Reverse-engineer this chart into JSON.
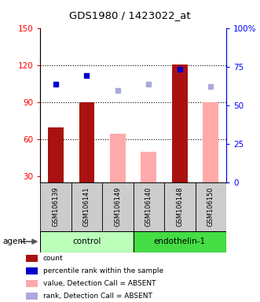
{
  "title": "GDS1980 / 1423022_at",
  "samples": [
    "GSM106139",
    "GSM106141",
    "GSM106149",
    "GSM106140",
    "GSM106148",
    "GSM106150"
  ],
  "groups": [
    {
      "name": "control",
      "indices": [
        0,
        1,
        2
      ],
      "color": "#bbffbb"
    },
    {
      "name": "endothelin-1",
      "indices": [
        3,
        4,
        5
      ],
      "color": "#44dd44"
    }
  ],
  "bar_present_values": [
    70,
    90,
    null,
    null,
    121,
    null
  ],
  "bar_absent_values": [
    null,
    null,
    65,
    50,
    null,
    90
  ],
  "bar_color_present": "#aa1111",
  "bar_color_absent": "#ffaaaa",
  "dot_present_y": [
    105,
    112,
    null,
    null,
    117,
    null
  ],
  "dot_absent_y": [
    null,
    null,
    100,
    105,
    null,
    103
  ],
  "dot_present_color": "#0000cc",
  "dot_absent_color": "#aaaadd",
  "ylim": [
    25,
    150
  ],
  "yticks": [
    30,
    60,
    90,
    120,
    150
  ],
  "ytick_labels": [
    "30",
    "60",
    "90",
    "120",
    "150"
  ],
  "ylim_right": [
    0,
    100
  ],
  "yticks_right": [
    0,
    25,
    50,
    75,
    100
  ],
  "ytick_labels_right": [
    "0",
    "25",
    "50",
    "75",
    "100%"
  ],
  "hlines": [
    60,
    90,
    120
  ],
  "agent_label": "agent",
  "legend_items": [
    {
      "color": "#aa1111",
      "label": "count"
    },
    {
      "color": "#0000cc",
      "label": "percentile rank within the sample"
    },
    {
      "color": "#ffaaaa",
      "label": "value, Detection Call = ABSENT"
    },
    {
      "color": "#aaaadd",
      "label": "rank, Detection Call = ABSENT"
    }
  ]
}
